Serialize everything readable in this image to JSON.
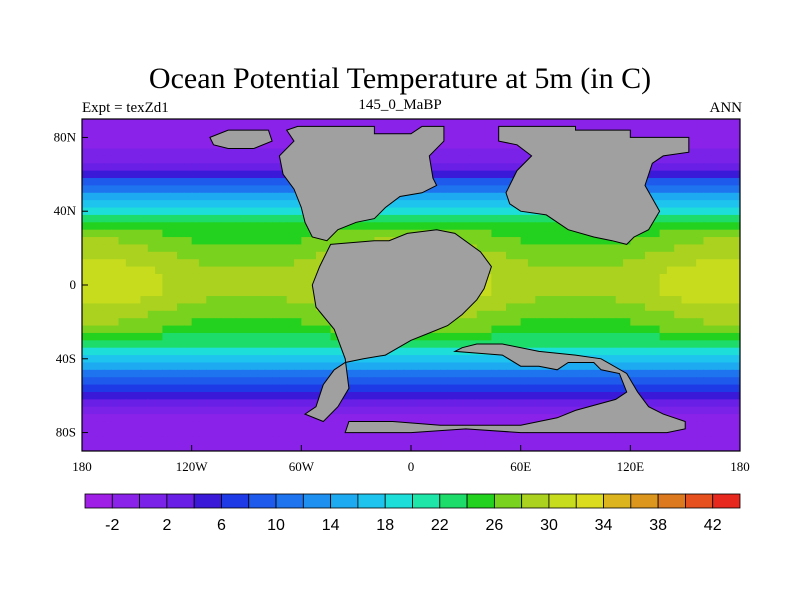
{
  "chart_data": {
    "type": "heatmap",
    "title": "Ocean Potential Temperature at 5m (in C)",
    "subtitle_left": "Expt = texZd1",
    "subtitle_center": "145_0_MaBP",
    "subtitle_right": "ANN",
    "x_ticks": [
      {
        "value": -180,
        "label": "180"
      },
      {
        "value": -120,
        "label": "120W"
      },
      {
        "value": -60,
        "label": "60W"
      },
      {
        "value": 0,
        "label": "0"
      },
      {
        "value": 60,
        "label": "60E"
      },
      {
        "value": 120,
        "label": "120E"
      },
      {
        "value": 180,
        "label": "180"
      }
    ],
    "y_ticks": [
      {
        "value": 80,
        "label": "80N"
      },
      {
        "value": 40,
        "label": "40N"
      },
      {
        "value": 0,
        "label": "0"
      },
      {
        "value": -40,
        "label": "40S"
      },
      {
        "value": -80,
        "label": "80S"
      }
    ],
    "xlim": [
      -180,
      180
    ],
    "ylim": [
      -90,
      90
    ],
    "colorbar": {
      "levels": [
        -4,
        -2,
        0,
        2,
        4,
        6,
        8,
        10,
        12,
        14,
        16,
        18,
        20,
        22,
        24,
        26,
        28,
        30,
        32,
        34,
        36,
        38,
        40,
        42,
        44
      ],
      "labels": [
        {
          "value": -2,
          "label": "-2"
        },
        {
          "value": 2,
          "label": "2"
        },
        {
          "value": 6,
          "label": "6"
        },
        {
          "value": 10,
          "label": "10"
        },
        {
          "value": 14,
          "label": "14"
        },
        {
          "value": 18,
          "label": "18"
        },
        {
          "value": 22,
          "label": "22"
        },
        {
          "value": 26,
          "label": "26"
        },
        {
          "value": 30,
          "label": "30"
        },
        {
          "value": 34,
          "label": "34"
        },
        {
          "value": 38,
          "label": "38"
        },
        {
          "value": 42,
          "label": "42"
        }
      ],
      "colors": [
        "#9f1fe6",
        "#8a22e9",
        "#7a22e8",
        "#6a1fe6",
        "#3a1ad8",
        "#1e3ae6",
        "#1e5aec",
        "#1e74ef",
        "#1e90f0",
        "#1eaaf0",
        "#1ec4ee",
        "#1eded9",
        "#1ee6a8",
        "#1edc6a",
        "#22d21e",
        "#78d21e",
        "#aad21e",
        "#c8dc1e",
        "#dcdc1e",
        "#dcb41e",
        "#dc961e",
        "#dc781e",
        "#e6501e",
        "#e6281e"
      ]
    },
    "land_color": "#a0a0a0",
    "ocean_bands": [
      {
        "lat": 90,
        "temp": -1
      },
      {
        "lat": 72,
        "temp": 0
      },
      {
        "lat": 62,
        "temp": 4
      },
      {
        "lat": 52,
        "temp": 11
      },
      {
        "lat": 44,
        "temp": 17
      },
      {
        "lat": 36,
        "temp": 22
      },
      {
        "lat": 28,
        "temp": 26
      },
      {
        "lat": 18,
        "temp": 28
      },
      {
        "lat": 6,
        "temp": 30
      },
      {
        "lat": -4,
        "temp": 30
      },
      {
        "lat": -14,
        "temp": 28
      },
      {
        "lat": -24,
        "temp": 26
      },
      {
        "lat": -32,
        "temp": 22
      },
      {
        "lat": -42,
        "temp": 16
      },
      {
        "lat": -52,
        "temp": 9
      },
      {
        "lat": -60,
        "temp": 4
      },
      {
        "lat": -70,
        "temp": 0
      },
      {
        "lat": -90,
        "temp": -1
      }
    ],
    "land_polygons": [
      [
        [
          -110,
          80
        ],
        [
          -100,
          84
        ],
        [
          -78,
          84
        ],
        [
          -76,
          78
        ],
        [
          -86,
          74
        ],
        [
          -100,
          74
        ],
        [
          -108,
          76
        ]
      ],
      [
        [
          -62,
          86
        ],
        [
          -20,
          86
        ],
        [
          -20,
          82
        ],
        [
          0,
          82
        ],
        [
          6,
          86
        ],
        [
          18,
          86
        ],
        [
          18,
          78
        ],
        [
          10,
          70
        ],
        [
          12,
          58
        ],
        [
          14,
          54
        ],
        [
          6,
          50
        ],
        [
          -6,
          48
        ],
        [
          -14,
          42
        ],
        [
          -20,
          36
        ],
        [
          -30,
          34
        ],
        [
          -40,
          30
        ],
        [
          -46,
          24
        ],
        [
          -54,
          26
        ],
        [
          -58,
          34
        ],
        [
          -60,
          42
        ],
        [
          -64,
          52
        ],
        [
          -70,
          60
        ],
        [
          -72,
          70
        ],
        [
          -64,
          78
        ],
        [
          -68,
          84
        ]
      ],
      [
        [
          48,
          86
        ],
        [
          90,
          86
        ],
        [
          90,
          84
        ],
        [
          120,
          84
        ],
        [
          120,
          80
        ],
        [
          152,
          80
        ],
        [
          152,
          72
        ],
        [
          138,
          70
        ],
        [
          132,
          66
        ],
        [
          128,
          54
        ],
        [
          136,
          40
        ],
        [
          130,
          30
        ],
        [
          122,
          26
        ],
        [
          118,
          22
        ],
        [
          110,
          24
        ],
        [
          100,
          26
        ],
        [
          86,
          30
        ],
        [
          74,
          38
        ],
        [
          60,
          40
        ],
        [
          54,
          44
        ],
        [
          52,
          50
        ],
        [
          58,
          62
        ],
        [
          66,
          70
        ],
        [
          58,
          76
        ],
        [
          48,
          78
        ]
      ],
      [
        [
          -44,
          22
        ],
        [
          -20,
          24
        ],
        [
          -12,
          24
        ],
        [
          -2,
          28
        ],
        [
          14,
          30
        ],
        [
          24,
          28
        ],
        [
          38,
          18
        ],
        [
          44,
          10
        ],
        [
          40,
          -2
        ],
        [
          36,
          -8
        ],
        [
          28,
          -16
        ],
        [
          20,
          -22
        ],
        [
          10,
          -26
        ],
        [
          0,
          -30
        ],
        [
          -14,
          -38
        ],
        [
          -26,
          -40
        ],
        [
          -36,
          -42
        ],
        [
          -42,
          -46
        ],
        [
          -48,
          -54
        ],
        [
          -50,
          -60
        ],
        [
          -52,
          -66
        ],
        [
          -58,
          -70
        ],
        [
          -48,
          -74
        ],
        [
          -40,
          -66
        ],
        [
          -34,
          -56
        ],
        [
          -36,
          -40
        ],
        [
          -42,
          -24
        ],
        [
          -52,
          -12
        ],
        [
          -54,
          0
        ],
        [
          -50,
          10
        ],
        [
          -46,
          18
        ]
      ],
      [
        [
          24,
          -36
        ],
        [
          50,
          -38
        ],
        [
          60,
          -44
        ],
        [
          70,
          -44
        ],
        [
          80,
          -46
        ],
        [
          86,
          -42
        ],
        [
          100,
          -42
        ],
        [
          104,
          -46
        ],
        [
          114,
          -48
        ],
        [
          118,
          -58
        ],
        [
          112,
          -62
        ],
        [
          90,
          -68
        ],
        [
          80,
          -72
        ],
        [
          60,
          -76
        ],
        [
          40,
          -76
        ],
        [
          16,
          -76
        ],
        [
          -10,
          -74
        ],
        [
          -34,
          -74
        ],
        [
          -36,
          -80
        ],
        [
          0,
          -80
        ],
        [
          30,
          -78
        ],
        [
          60,
          -80
        ],
        [
          110,
          -80
        ],
        [
          140,
          -80
        ],
        [
          150,
          -78
        ],
        [
          150,
          -74
        ],
        [
          138,
          -70
        ],
        [
          130,
          -66
        ],
        [
          124,
          -58
        ],
        [
          118,
          -48
        ],
        [
          104,
          -40
        ],
        [
          90,
          -38
        ],
        [
          70,
          -36
        ],
        [
          50,
          -32
        ],
        [
          36,
          -32
        ],
        [
          28,
          -34
        ]
      ]
    ],
    "annotations": []
  }
}
